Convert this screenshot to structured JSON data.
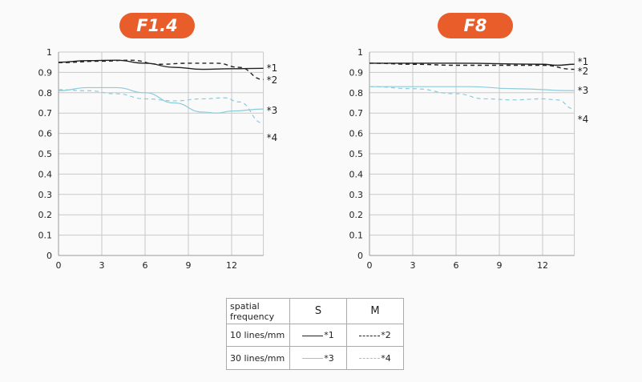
{
  "colors": {
    "accent": "#e85d2a",
    "black": "#222222",
    "blue": "#8ccbdc",
    "grid": "#c8c8c8"
  },
  "chart_data": [
    {
      "type": "line",
      "title": "F1.4",
      "xlim": [
        0,
        14.2
      ],
      "ylim": [
        0,
        1
      ],
      "grid": true,
      "xticks": [
        "0",
        "3",
        "6",
        "9",
        "12"
      ],
      "yticks": [
        "0",
        "0.1",
        "0.2",
        "0.3",
        "0.4",
        "0.5",
        "0.6",
        "0.7",
        "0.8",
        "0.9",
        "1"
      ],
      "series": [
        {
          "name": "*1",
          "style": "solid",
          "color": "black",
          "x": [
            0,
            2,
            4,
            6,
            8,
            10,
            12,
            14.2
          ],
          "y": [
            0.95,
            0.958,
            0.96,
            0.945,
            0.925,
            0.915,
            0.918,
            0.92
          ]
        },
        {
          "name": "*2",
          "style": "dashed",
          "color": "black",
          "x": [
            0,
            3,
            5,
            7,
            9,
            11,
            12.5,
            14.2
          ],
          "y": [
            0.948,
            0.955,
            0.96,
            0.94,
            0.945,
            0.945,
            0.925,
            0.865
          ]
        },
        {
          "name": "*3",
          "style": "solid",
          "color": "blue",
          "x": [
            0,
            2,
            4,
            6,
            8,
            10,
            11,
            12,
            14.2
          ],
          "y": [
            0.81,
            0.825,
            0.825,
            0.8,
            0.75,
            0.705,
            0.7,
            0.71,
            0.72
          ]
        },
        {
          "name": "*4",
          "style": "dashed",
          "color": "blue",
          "x": [
            0,
            2,
            4,
            6,
            8,
            10,
            11.5,
            12.5,
            14.2
          ],
          "y": [
            0.815,
            0.81,
            0.795,
            0.77,
            0.76,
            0.77,
            0.775,
            0.755,
            0.65
          ]
        }
      ]
    },
    {
      "type": "line",
      "title": "F8",
      "xlim": [
        0,
        14.2
      ],
      "ylim": [
        0,
        1
      ],
      "grid": true,
      "xticks": [
        "0",
        "3",
        "6",
        "9",
        "12"
      ],
      "yticks": [
        "0",
        "0.1",
        "0.2",
        "0.3",
        "0.4",
        "0.5",
        "0.6",
        "0.7",
        "0.8",
        "0.9",
        "1"
      ],
      "series": [
        {
          "name": "*1",
          "style": "solid",
          "color": "black",
          "x": [
            0,
            6,
            12,
            13,
            14.2
          ],
          "y": [
            0.945,
            0.945,
            0.94,
            0.935,
            0.94
          ]
        },
        {
          "name": "*2",
          "style": "dashed",
          "color": "black",
          "x": [
            0,
            3,
            6,
            9,
            12,
            14.2
          ],
          "y": [
            0.945,
            0.94,
            0.935,
            0.935,
            0.935,
            0.915
          ]
        },
        {
          "name": "*3",
          "style": "solid",
          "color": "blue",
          "x": [
            0,
            3,
            7,
            10,
            14.2
          ],
          "y": [
            0.83,
            0.83,
            0.83,
            0.82,
            0.81
          ]
        },
        {
          "name": "*4",
          "style": "dashed",
          "color": "blue",
          "x": [
            0,
            3,
            6,
            8,
            10,
            12,
            13,
            14.2
          ],
          "y": [
            0.83,
            0.82,
            0.795,
            0.77,
            0.765,
            0.77,
            0.765,
            0.72
          ]
        }
      ]
    }
  ],
  "legend": {
    "header": [
      "spatial frequency",
      "S",
      "M"
    ],
    "rows": [
      {
        "label": "10 lines/mm",
        "s": "*1",
        "m": "*2"
      },
      {
        "label": "30 lines/mm",
        "s": "*3",
        "m": "*4"
      }
    ]
  }
}
